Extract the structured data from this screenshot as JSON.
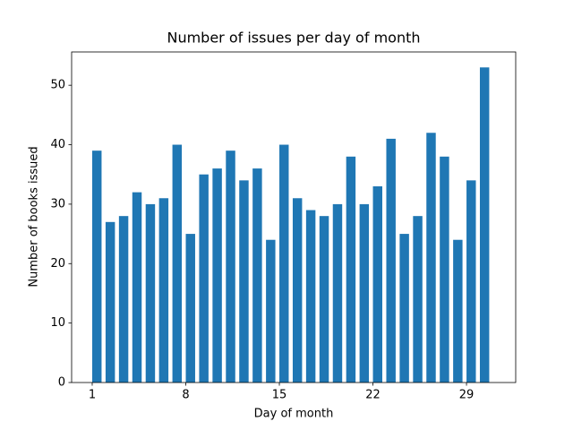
{
  "chart_data": {
    "type": "bar",
    "title": "Number of issues per day of month",
    "xlabel": "Day of month",
    "ylabel": "Number of books issued",
    "x": [
      1,
      2,
      3,
      4,
      5,
      6,
      7,
      8,
      9,
      10,
      11,
      12,
      13,
      14,
      15,
      16,
      17,
      18,
      19,
      20,
      21,
      22,
      23,
      24,
      25,
      26,
      27,
      28,
      29,
      30
    ],
    "values": [
      39,
      27,
      28,
      32,
      30,
      31,
      40,
      25,
      35,
      36,
      39,
      34,
      36,
      24,
      40,
      31,
      29,
      28,
      30,
      38,
      30,
      33,
      41,
      25,
      28,
      42,
      38,
      24,
      34,
      53
    ],
    "color": "#1f77b4",
    "xlim": [
      -0.54,
      32.68
    ],
    "xticks": [
      1,
      8,
      15,
      22,
      29
    ],
    "ylim": [
      0,
      55.6
    ],
    "yticks": [
      0,
      10,
      20,
      30,
      40,
      50
    ]
  }
}
